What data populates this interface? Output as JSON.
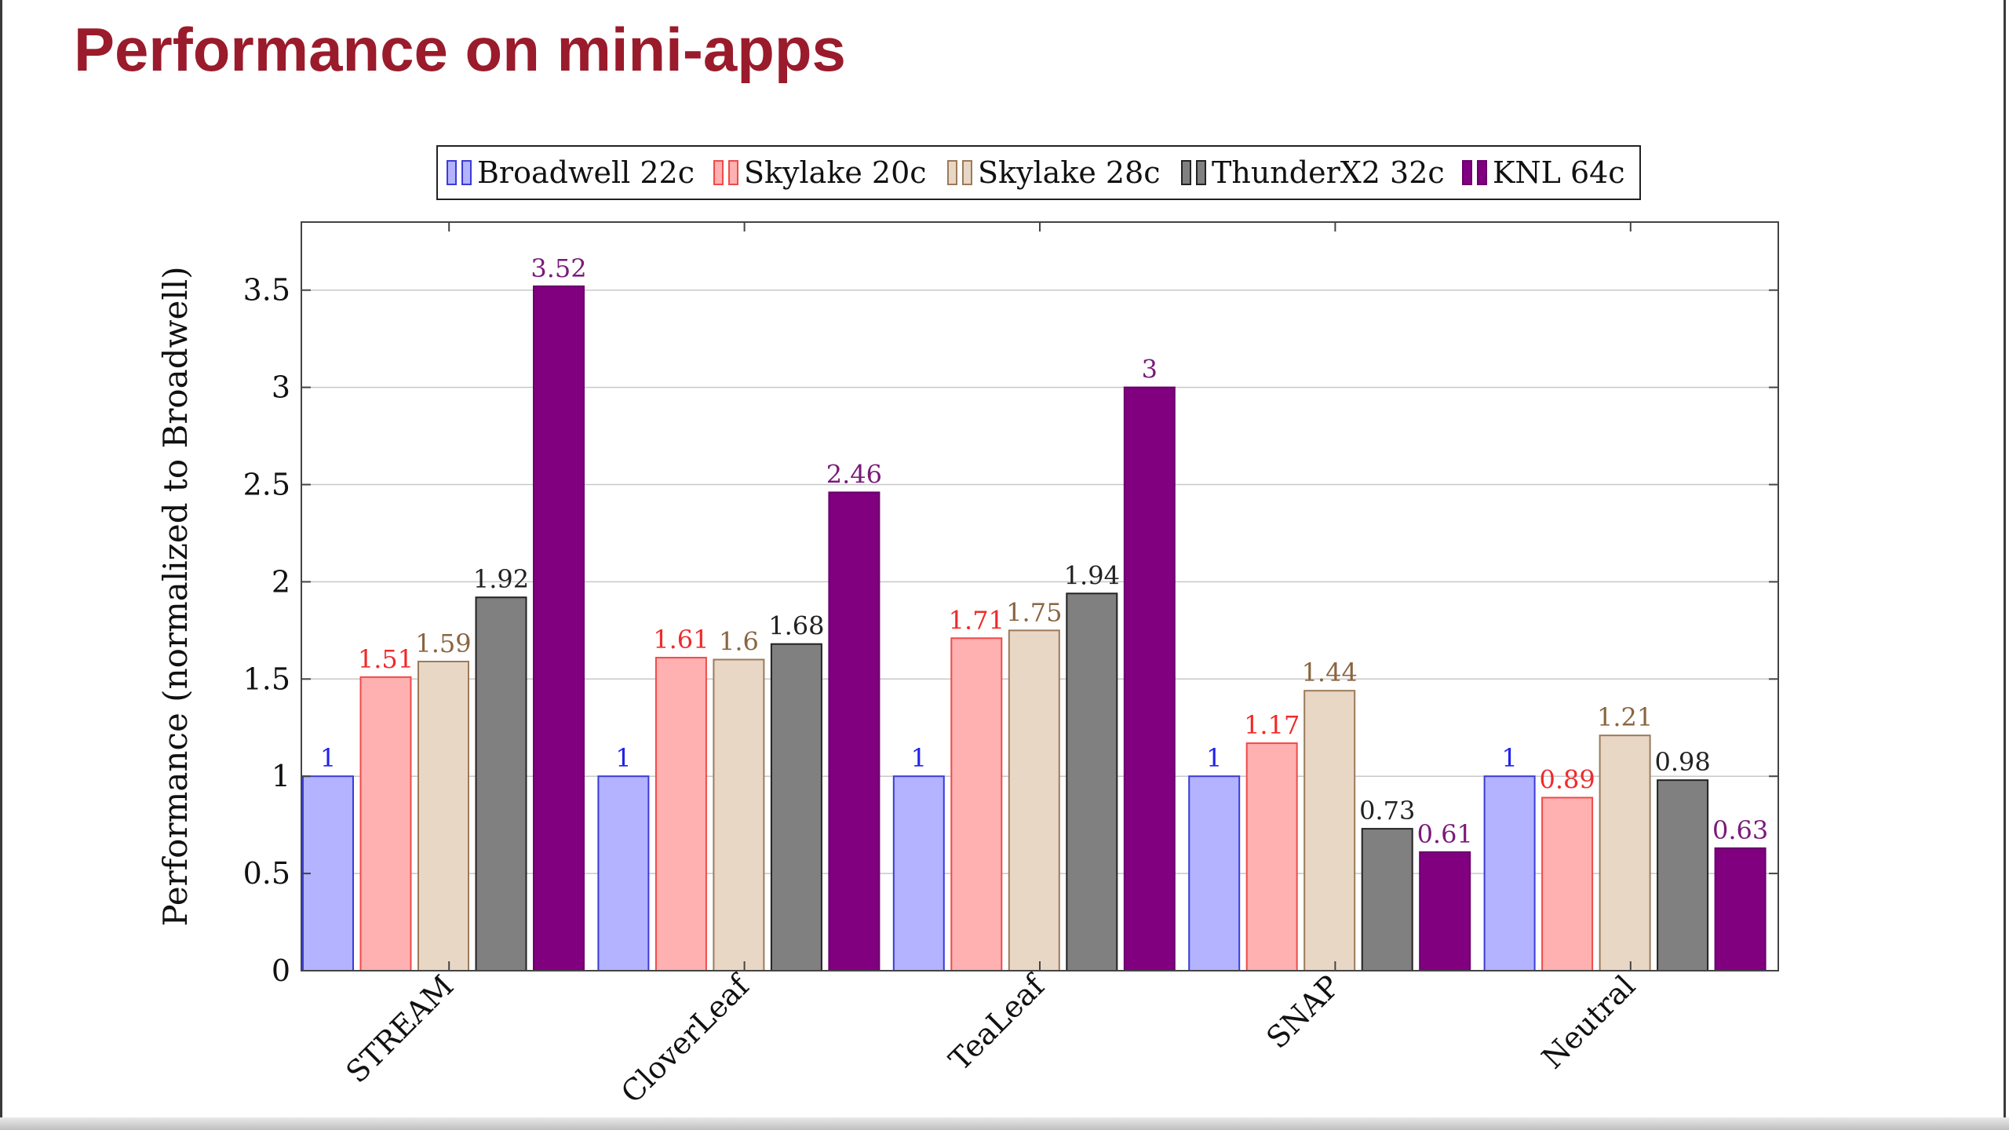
{
  "slide": {
    "title": "Performance on mini-apps"
  },
  "colors": {
    "title": "#9a1b2b"
  },
  "chart_data": {
    "type": "bar",
    "categories": [
      "STREAM",
      "CloverLeaf",
      "TeaLeaf",
      "SNAP",
      "Neutral"
    ],
    "ylabel": "Performance (normalized to Broadwell)",
    "xlabel": "",
    "ylim": [
      0,
      3.85
    ],
    "yticks": [
      "0",
      "0.5",
      "1",
      "1.5",
      "2",
      "2.5",
      "3",
      "3.5"
    ],
    "grid": true,
    "legend_position": "top-center",
    "series": [
      {
        "name": "Broadwell 22c",
        "values": [
          1,
          1,
          1,
          1,
          1
        ],
        "labels": [
          "1",
          "1",
          "1",
          "1",
          "1"
        ],
        "fill": "#b3b3ff",
        "stroke": "#3b3bd9",
        "label_color": "#2222ee"
      },
      {
        "name": "Skylake 20c",
        "values": [
          1.51,
          1.61,
          1.71,
          1.17,
          0.89
        ],
        "labels": [
          "1.51",
          "1.61",
          "1.71",
          "1.17",
          "0.89"
        ],
        "fill": "#ffb0b0",
        "stroke": "#f04a4a",
        "label_color": "#f02a2a"
      },
      {
        "name": "Skylake 28c",
        "values": [
          1.59,
          1.6,
          1.75,
          1.44,
          1.21
        ],
        "labels": [
          "1.59",
          "1.6",
          "1.75",
          "1.44",
          "1.21"
        ],
        "fill": "#e9d7c6",
        "stroke": "#9b7a5a",
        "label_color": "#8a6540"
      },
      {
        "name": "ThunderX2 32c",
        "values": [
          1.92,
          1.68,
          1.94,
          0.73,
          0.98
        ],
        "labels": [
          "1.92",
          "1.68",
          "1.94",
          "0.73",
          "0.98"
        ],
        "fill": "#808080",
        "stroke": "#222222",
        "label_color": "#222222"
      },
      {
        "name": "KNL 64c",
        "values": [
          3.52,
          2.46,
          3,
          0.61,
          0.63
        ],
        "labels": [
          "3.52",
          "2.46",
          "3",
          "0.61",
          "0.63"
        ],
        "fill": "#800080",
        "stroke": "#6a006a",
        "label_color": "#7a1a7a"
      }
    ]
  }
}
